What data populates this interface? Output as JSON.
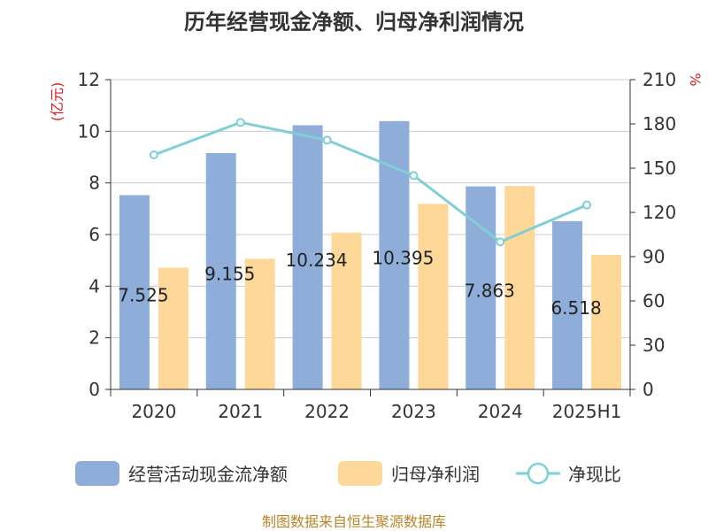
{
  "colors": {
    "ocf": "#8eadd9",
    "profit": "#fdd899",
    "ratio": "#80cfd6",
    "grid": "#cccccc",
    "axis": "#333333",
    "unit": "#e0191b",
    "source": "#b8862a"
  },
  "chart_data": {
    "type": "bar",
    "title": "历年经营现金净额、归母净利润情况",
    "categories": [
      "2020",
      "2021",
      "2022",
      "2023",
      "2024",
      "2025H1"
    ],
    "y_left": {
      "unit_label": "(亿元)",
      "ylim": [
        0,
        12
      ],
      "ticks": [
        "0",
        "2",
        "4",
        "6",
        "8",
        "10",
        "12"
      ]
    },
    "y_right": {
      "unit_label": "%",
      "ylim": [
        0,
        210
      ],
      "ticks": [
        "0",
        "30",
        "60",
        "90",
        "120",
        "150",
        "180",
        "210"
      ]
    },
    "series": [
      {
        "name": "经营活动现金流净额",
        "type": "bar",
        "axis": "left",
        "values": [
          7.525,
          9.155,
          10.234,
          10.395,
          7.863,
          6.518
        ],
        "labels": [
          "7.525",
          "9.155",
          "10.234",
          "10.395",
          "7.863",
          "6.518"
        ]
      },
      {
        "name": "归母净利润",
        "type": "bar",
        "axis": "left",
        "values": [
          4.72,
          5.06,
          6.07,
          7.19,
          7.88,
          5.21
        ]
      },
      {
        "name": "净现比",
        "type": "line",
        "axis": "right",
        "values": [
          159,
          181,
          169,
          145,
          100,
          125
        ]
      }
    ],
    "grid": true,
    "legend_position": "bottom",
    "source": "制图数据来自恒生聚源数据库"
  }
}
